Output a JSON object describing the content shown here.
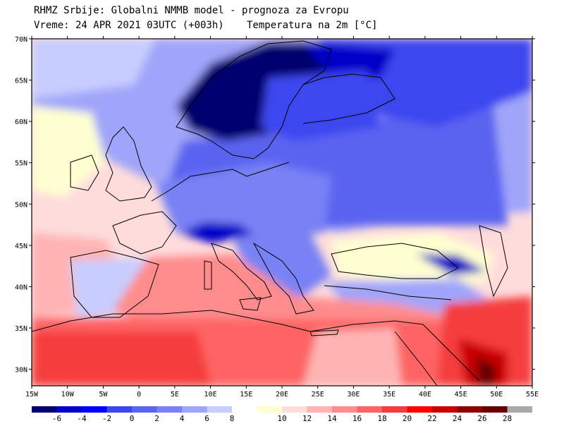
{
  "header": {
    "line1": "RHMZ Srbije: Globalni NMMB model - prognoza za Evropu",
    "line2_left": "Vreme: 24 APR 2021 03UTC (+003h)",
    "line2_right": "Temperatura na 2m [°C]"
  },
  "axes": {
    "lat_labels": [
      "70N",
      "65N",
      "60N",
      "55N",
      "50N",
      "45N",
      "40N",
      "35N",
      "30N"
    ],
    "lat_values": [
      70,
      65,
      60,
      55,
      50,
      45,
      40,
      35,
      30
    ],
    "lon_labels": [
      "15W",
      "10W",
      "5W",
      "0",
      "5E",
      "10E",
      "15E",
      "20E",
      "25E",
      "30E",
      "35E",
      "40E",
      "45E",
      "50E",
      "55E"
    ],
    "lon_values": [
      -15,
      -10,
      -5,
      0,
      5,
      10,
      15,
      20,
      25,
      30,
      35,
      40,
      45,
      50,
      55
    ],
    "lon_range": [
      -15,
      55
    ],
    "lat_range": [
      28,
      70
    ]
  },
  "colorbar": {
    "colors": [
      "#00006e",
      "#0000c8",
      "#0000ff",
      "#3c46f0",
      "#5a64f0",
      "#7882f5",
      "#a0a5fa",
      "#c8cdff",
      "#ffffff",
      "#ffffd2",
      "#ffdcdc",
      "#ffb4b4",
      "#ff8c8c",
      "#ff6464",
      "#f53c3c",
      "#ff0000",
      "#c80000",
      "#8c0000",
      "#640000",
      "#a8a8a8"
    ],
    "labels": [
      "-6",
      "-4",
      "-2",
      "0",
      "2",
      "4",
      "6",
      "8",
      "10",
      "12",
      "14",
      "16",
      "18",
      "20",
      "22",
      "24",
      "26",
      "28"
    ]
  },
  "regions": [
    {
      "name": "scandinavia-cold",
      "color": "#00006e"
    },
    {
      "name": "eastern-europe-cold",
      "color": "#3c46f0"
    },
    {
      "name": "central-europe-cool",
      "color": "#5a64f0"
    },
    {
      "name": "alps-cold",
      "color": "#0000c8"
    },
    {
      "name": "atlantic-mild",
      "color": "#c8cdff"
    },
    {
      "name": "iberia-warm",
      "color": "#ffb4b4"
    },
    {
      "name": "north-africa-warm",
      "color": "#ff6464"
    },
    {
      "name": "middle-east-hot",
      "color": "#c80000"
    }
  ]
}
